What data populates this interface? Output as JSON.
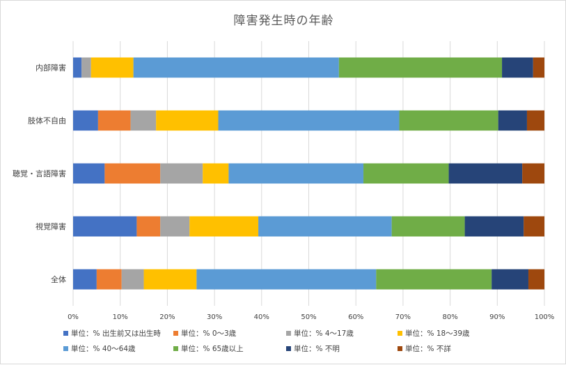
{
  "chart_data": {
    "type": "bar",
    "orientation": "horizontal",
    "stacked": "percent",
    "title": "障害発生時の年齢",
    "xlabel": "",
    "ylabel": "",
    "xlim": [
      0,
      100
    ],
    "x_ticks": [
      "0%",
      "10%",
      "20%",
      "30%",
      "40%",
      "50%",
      "60%",
      "70%",
      "80%",
      "90%",
      "100%"
    ],
    "grid": "vertical",
    "legend_position": "bottom",
    "categories": [
      "内部障害",
      "肢体不自由",
      "聴覚・言語障害",
      "視覚障害",
      "全体"
    ],
    "series": [
      {
        "name": "単位：% 出生前又は出生時",
        "color": "#4472c4",
        "values": [
          1.8,
          5.3,
          6.7,
          13.5,
          5.0
        ]
      },
      {
        "name": "単位：% 0～3歳",
        "color": "#ed7d31",
        "values": [
          0.0,
          6.9,
          11.8,
          5.0,
          5.3
        ]
      },
      {
        "name": "単位：% 4～17歳",
        "color": "#a5a5a5",
        "values": [
          2.0,
          5.4,
          9.0,
          6.2,
          4.7
        ]
      },
      {
        "name": "単位：% 18～39歳",
        "color": "#ffc000",
        "values": [
          9.0,
          13.2,
          5.5,
          14.6,
          11.2
        ]
      },
      {
        "name": "単位：% 40～64歳",
        "color": "#5b9bd5",
        "values": [
          43.6,
          38.4,
          28.6,
          28.3,
          38.1
        ]
      },
      {
        "name": "単位：% 65歳以上",
        "color": "#70ad47",
        "values": [
          34.6,
          21.0,
          18.1,
          15.5,
          24.5
        ]
      },
      {
        "name": "単位：% 不明",
        "color": "#264478",
        "values": [
          6.6,
          6.1,
          15.6,
          12.5,
          7.8
        ]
      },
      {
        "name": "単位：% 不詳",
        "color": "#9e480e",
        "values": [
          2.4,
          3.7,
          4.7,
          4.4,
          3.4
        ]
      }
    ]
  }
}
